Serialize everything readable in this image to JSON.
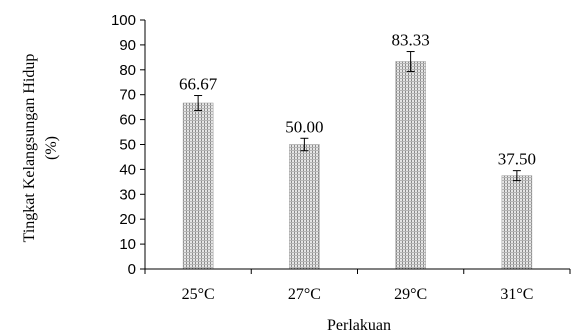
{
  "chart_data": {
    "type": "bar",
    "categories": [
      "25°C",
      "27°C",
      "29°C",
      "31°C"
    ],
    "values": [
      66.67,
      50.0,
      83.33,
      37.5
    ],
    "value_labels": [
      "66.67",
      "50.00",
      "83.33",
      "37.50"
    ],
    "error": [
      3.0,
      2.5,
      4.0,
      2.0
    ],
    "xlabel": "Perlakuan",
    "ylabel_line1": "Tingkat Kelangsungan Hidup",
    "ylabel_line2": "(%)",
    "ylim": [
      0,
      100
    ],
    "yticks": [
      0,
      10,
      20,
      30,
      40,
      50,
      60,
      70,
      80,
      90,
      100
    ],
    "grid": false,
    "bar_color": "#c8c8c8",
    "bar_pattern_color": "#8a8a8a"
  }
}
